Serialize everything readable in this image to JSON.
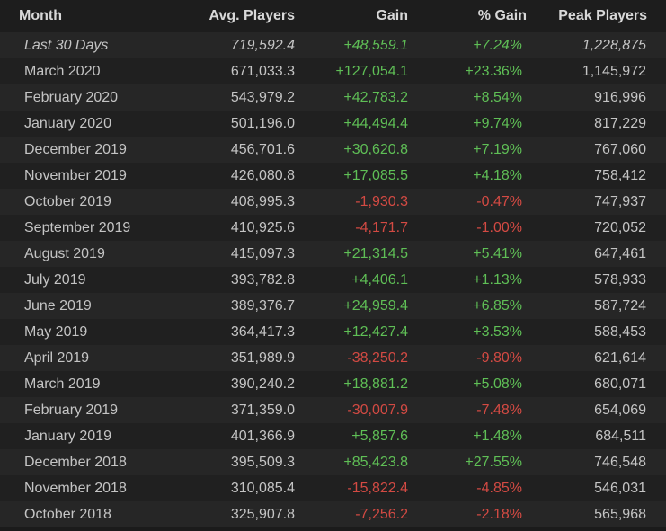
{
  "headers": {
    "month": "Month",
    "avg": "Avg. Players",
    "gain": "Gain",
    "pct": "% Gain",
    "peak": "Peak Players"
  },
  "colors": {
    "positive": "#5fbf56",
    "negative": "#d34a43"
  },
  "rows": [
    {
      "month": "Last 30 Days",
      "avg": "719,592.4",
      "gain": "+48,559.1",
      "pct": "+7.24%",
      "peak": "1,228,875",
      "trend": "pos",
      "italic": true
    },
    {
      "month": "March 2020",
      "avg": "671,033.3",
      "gain": "+127,054.1",
      "pct": "+23.36%",
      "peak": "1,145,972",
      "trend": "pos"
    },
    {
      "month": "February 2020",
      "avg": "543,979.2",
      "gain": "+42,783.2",
      "pct": "+8.54%",
      "peak": "916,996",
      "trend": "pos"
    },
    {
      "month": "January 2020",
      "avg": "501,196.0",
      "gain": "+44,494.4",
      "pct": "+9.74%",
      "peak": "817,229",
      "trend": "pos"
    },
    {
      "month": "December 2019",
      "avg": "456,701.6",
      "gain": "+30,620.8",
      "pct": "+7.19%",
      "peak": "767,060",
      "trend": "pos"
    },
    {
      "month": "November 2019",
      "avg": "426,080.8",
      "gain": "+17,085.5",
      "pct": "+4.18%",
      "peak": "758,412",
      "trend": "pos"
    },
    {
      "month": "October 2019",
      "avg": "408,995.3",
      "gain": "-1,930.3",
      "pct": "-0.47%",
      "peak": "747,937",
      "trend": "neg"
    },
    {
      "month": "September 2019",
      "avg": "410,925.6",
      "gain": "-4,171.7",
      "pct": "-1.00%",
      "peak": "720,052",
      "trend": "neg"
    },
    {
      "month": "August 2019",
      "avg": "415,097.3",
      "gain": "+21,314.5",
      "pct": "+5.41%",
      "peak": "647,461",
      "trend": "pos"
    },
    {
      "month": "July 2019",
      "avg": "393,782.8",
      "gain": "+4,406.1",
      "pct": "+1.13%",
      "peak": "578,933",
      "trend": "pos"
    },
    {
      "month": "June 2019",
      "avg": "389,376.7",
      "gain": "+24,959.4",
      "pct": "+6.85%",
      "peak": "587,724",
      "trend": "pos"
    },
    {
      "month": "May 2019",
      "avg": "364,417.3",
      "gain": "+12,427.4",
      "pct": "+3.53%",
      "peak": "588,453",
      "trend": "pos"
    },
    {
      "month": "April 2019",
      "avg": "351,989.9",
      "gain": "-38,250.2",
      "pct": "-9.80%",
      "peak": "621,614",
      "trend": "neg"
    },
    {
      "month": "March 2019",
      "avg": "390,240.2",
      "gain": "+18,881.2",
      "pct": "+5.08%",
      "peak": "680,071",
      "trend": "pos"
    },
    {
      "month": "February 2019",
      "avg": "371,359.0",
      "gain": "-30,007.9",
      "pct": "-7.48%",
      "peak": "654,069",
      "trend": "neg"
    },
    {
      "month": "January 2019",
      "avg": "401,366.9",
      "gain": "+5,857.6",
      "pct": "+1.48%",
      "peak": "684,511",
      "trend": "pos"
    },
    {
      "month": "December 2018",
      "avg": "395,509.3",
      "gain": "+85,423.8",
      "pct": "+27.55%",
      "peak": "746,548",
      "trend": "pos"
    },
    {
      "month": "November 2018",
      "avg": "310,085.4",
      "gain": "-15,822.4",
      "pct": "-4.85%",
      "peak": "546,031",
      "trend": "neg"
    },
    {
      "month": "October 2018",
      "avg": "325,907.8",
      "gain": "-7,256.2",
      "pct": "-2.18%",
      "peak": "565,968",
      "trend": "neg"
    }
  ]
}
